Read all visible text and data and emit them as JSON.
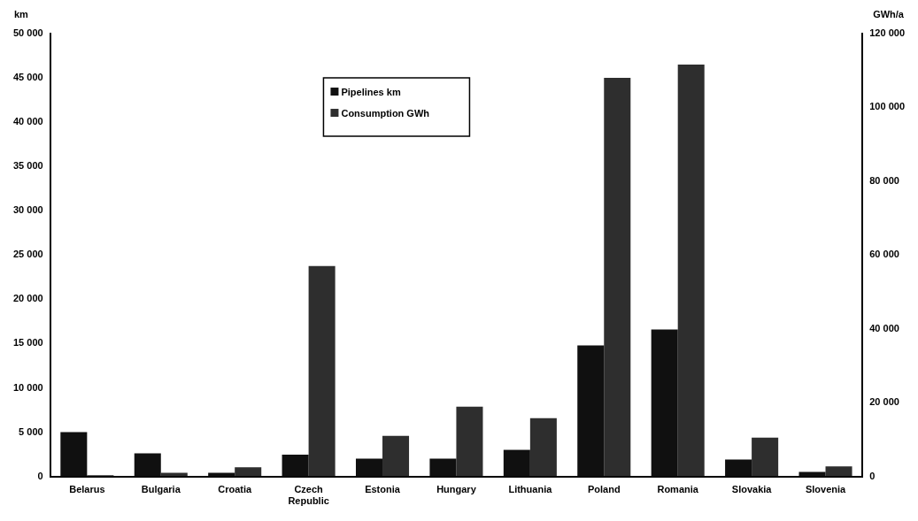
{
  "chart_data": {
    "type": "bar",
    "ylabel": "km",
    "y2label": "GWh/a",
    "categories": [
      "Belarus",
      "Bulgaria",
      "Croatia",
      "Czech Republic",
      "Estonia",
      "Hungary",
      "Lithuania",
      "Poland",
      "Romania",
      "Slovakia",
      "Slovenia"
    ],
    "series": [
      {
        "name": "Pipelines km",
        "color": "#101010",
        "values": [
          5000,
          2600,
          400,
          2450,
          2000,
          2000,
          3000,
          14800,
          16600,
          1900,
          500
        ]
      },
      {
        "name": "Consumption GWh",
        "color": "#2e2e2e",
        "axis": "y2",
        "values": [
          300,
          1000,
          2500,
          57000,
          11000,
          18900,
          15800,
          108000,
          111600,
          10500,
          2700
        ]
      }
    ],
    "ylim": [
      0,
      50000
    ],
    "yticks": [
      0,
      5000,
      10000,
      15000,
      20000,
      25000,
      30000,
      35000,
      40000,
      45000,
      50000
    ],
    "y2lim": [
      0,
      120000
    ],
    "y2ticks": [
      0,
      20000,
      40000,
      60000,
      80000,
      100000,
      120000
    ],
    "grid": false,
    "legend": "top"
  }
}
